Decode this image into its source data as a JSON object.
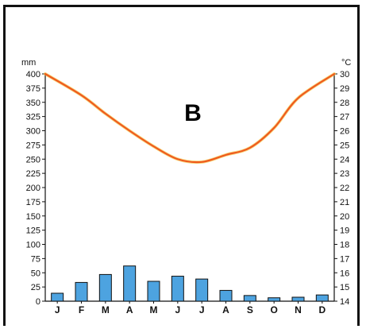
{
  "chart_data": {
    "type": "climate-graph",
    "title": "B",
    "left_unit": "mm",
    "right_unit": "°C",
    "categories": [
      "J",
      "F",
      "M",
      "A",
      "M",
      "J",
      "J",
      "A",
      "S",
      "O",
      "N",
      "D"
    ],
    "precip_range": [
      0,
      400
    ],
    "temp_range": [
      14,
      30
    ],
    "precip_ticks": [
      0,
      25,
      50,
      75,
      100,
      125,
      150,
      175,
      200,
      225,
      250,
      275,
      300,
      325,
      350,
      375,
      400
    ],
    "temp_ticks": [
      14,
      15,
      16,
      17,
      18,
      19,
      20,
      21,
      22,
      23,
      24,
      25,
      26,
      27,
      28,
      29,
      30
    ],
    "series": [
      {
        "type": "bar",
        "axis": "left",
        "values": [
          14,
          33,
          47,
          62,
          35,
          44,
          39,
          19,
          10,
          6,
          7,
          11
        ],
        "color": "#4da3e0"
      },
      {
        "type": "line",
        "axis": "right",
        "values": [
          30,
          28.5,
          27.2,
          26,
          24.9,
          24,
          23.8,
          24.3,
          24.8,
          26.2,
          28.3,
          30
        ],
        "color": "#ef5a1e"
      }
    ]
  }
}
